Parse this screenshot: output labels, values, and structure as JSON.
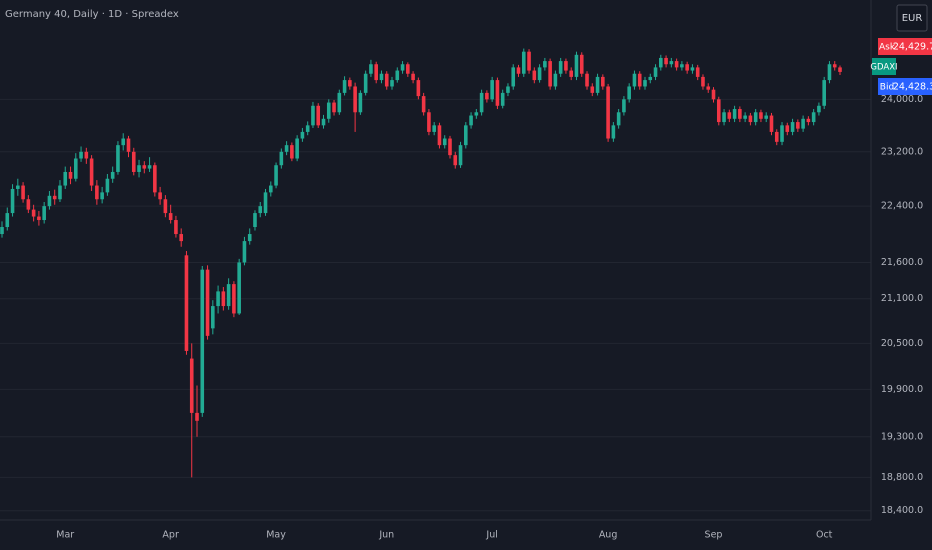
{
  "chart_data": {
    "type": "candlestick",
    "title": "Germany 40, Daily · 1D · Spreadex",
    "categories": [
      null,
      null,
      null,
      null,
      null,
      null,
      null,
      null,
      null,
      null,
      null,
      null,
      "Mar",
      null,
      null,
      null,
      null,
      null,
      null,
      null,
      null,
      null,
      null,
      null,
      null,
      null,
      null,
      null,
      null,
      null,
      null,
      null,
      "Apr",
      null,
      null,
      null,
      null,
      null,
      null,
      null,
      null,
      null,
      null,
      null,
      null,
      null,
      null,
      null,
      null,
      null,
      null,
      null,
      "May",
      null,
      null,
      null,
      null,
      null,
      null,
      null,
      null,
      null,
      null,
      null,
      null,
      null,
      null,
      null,
      null,
      null,
      null,
      null,
      null,
      "Jun",
      null,
      null,
      null,
      null,
      null,
      null,
      null,
      null,
      null,
      null,
      null,
      null,
      null,
      null,
      null,
      null,
      null,
      null,
      null,
      "Jul",
      null,
      null,
      null,
      null,
      null,
      null,
      null,
      null,
      null,
      null,
      null,
      null,
      null,
      null,
      null,
      null,
      null,
      null,
      null,
      null,
      null,
      "Aug",
      null,
      null,
      null,
      null,
      null,
      null,
      null,
      null,
      null,
      null,
      null,
      null,
      null,
      null,
      null,
      null,
      null,
      null,
      null,
      "Sep",
      null,
      null,
      null,
      null,
      null,
      null,
      null,
      null,
      null,
      null,
      null,
      null,
      null,
      null,
      null,
      null,
      null,
      null,
      null,
      null,
      "Oct",
      null,
      null,
      null
    ],
    "candles": [
      {
        "o": 22000,
        "h": 22180,
        "l": 21950,
        "c": 22100
      },
      {
        "o": 22100,
        "h": 22380,
        "l": 22050,
        "c": 22300
      },
      {
        "o": 22300,
        "h": 22720,
        "l": 22250,
        "c": 22650
      },
      {
        "o": 22650,
        "h": 22800,
        "l": 22550,
        "c": 22700
      },
      {
        "o": 22700,
        "h": 22750,
        "l": 22450,
        "c": 22500
      },
      {
        "o": 22500,
        "h": 22560,
        "l": 22300,
        "c": 22350
      },
      {
        "o": 22350,
        "h": 22420,
        "l": 22180,
        "c": 22250
      },
      {
        "o": 22250,
        "h": 22330,
        "l": 22120,
        "c": 22200
      },
      {
        "o": 22200,
        "h": 22460,
        "l": 22150,
        "c": 22400
      },
      {
        "o": 22400,
        "h": 22620,
        "l": 22350,
        "c": 22550
      },
      {
        "o": 22550,
        "h": 22640,
        "l": 22420,
        "c": 22500
      },
      {
        "o": 22500,
        "h": 22780,
        "l": 22460,
        "c": 22700
      },
      {
        "o": 22700,
        "h": 22980,
        "l": 22650,
        "c": 22900
      },
      {
        "o": 22900,
        "h": 22980,
        "l": 22720,
        "c": 22800
      },
      {
        "o": 22800,
        "h": 23180,
        "l": 22760,
        "c": 23100
      },
      {
        "o": 23100,
        "h": 23280,
        "l": 23050,
        "c": 23200
      },
      {
        "o": 23200,
        "h": 23260,
        "l": 23020,
        "c": 23100
      },
      {
        "o": 23100,
        "h": 23150,
        "l": 22620,
        "c": 22700
      },
      {
        "o": 22700,
        "h": 22780,
        "l": 22420,
        "c": 22500
      },
      {
        "o": 22500,
        "h": 22680,
        "l": 22440,
        "c": 22600
      },
      {
        "o": 22600,
        "h": 22870,
        "l": 22550,
        "c": 22800
      },
      {
        "o": 22800,
        "h": 22980,
        "l": 22740,
        "c": 22900
      },
      {
        "o": 22900,
        "h": 23360,
        "l": 22860,
        "c": 23300
      },
      {
        "o": 23300,
        "h": 23480,
        "l": 23220,
        "c": 23400
      },
      {
        "o": 23400,
        "h": 23440,
        "l": 23120,
        "c": 23200
      },
      {
        "o": 23200,
        "h": 23260,
        "l": 22850,
        "c": 22900
      },
      {
        "o": 22900,
        "h": 23080,
        "l": 22820,
        "c": 23000
      },
      {
        "o": 23000,
        "h": 23060,
        "l": 22880,
        "c": 22950
      },
      {
        "o": 22950,
        "h": 23120,
        "l": 22900,
        "c": 23000
      },
      {
        "o": 23000,
        "h": 23040,
        "l": 22540,
        "c": 22600
      },
      {
        "o": 22600,
        "h": 22680,
        "l": 22420,
        "c": 22500
      },
      {
        "o": 22500,
        "h": 22560,
        "l": 22240,
        "c": 22300
      },
      {
        "o": 22300,
        "h": 22420,
        "l": 22150,
        "c": 22200
      },
      {
        "o": 22200,
        "h": 22260,
        "l": 21950,
        "c": 22000
      },
      {
        "o": 22000,
        "h": 22080,
        "l": 21820,
        "c": 21900
      },
      {
        "o": 21700,
        "h": 21760,
        "l": 20350,
        "c": 20400
      },
      {
        "o": 20300,
        "h": 20500,
        "l": 18800,
        "c": 19600
      },
      {
        "o": 19600,
        "h": 19950,
        "l": 19300,
        "c": 19500
      },
      {
        "o": 19600,
        "h": 21550,
        "l": 19550,
        "c": 21500
      },
      {
        "o": 21500,
        "h": 21560,
        "l": 20550,
        "c": 20600
      },
      {
        "o": 20700,
        "h": 21080,
        "l": 20620,
        "c": 21000
      },
      {
        "o": 21000,
        "h": 21280,
        "l": 20900,
        "c": 21200
      },
      {
        "o": 21200,
        "h": 21260,
        "l": 20940,
        "c": 21000
      },
      {
        "o": 21000,
        "h": 21380,
        "l": 20950,
        "c": 21300
      },
      {
        "o": 21300,
        "h": 21340,
        "l": 20850,
        "c": 20900
      },
      {
        "o": 20900,
        "h": 21650,
        "l": 20880,
        "c": 21600
      },
      {
        "o": 21600,
        "h": 21960,
        "l": 21560,
        "c": 21900
      },
      {
        "o": 21900,
        "h": 22080,
        "l": 21850,
        "c": 22000
      },
      {
        "o": 22100,
        "h": 22340,
        "l": 22050,
        "c": 22300
      },
      {
        "o": 22300,
        "h": 22460,
        "l": 22240,
        "c": 22400
      },
      {
        "o": 22300,
        "h": 22650,
        "l": 22260,
        "c": 22600
      },
      {
        "o": 22600,
        "h": 22760,
        "l": 22540,
        "c": 22700
      },
      {
        "o": 22700,
        "h": 23040,
        "l": 22660,
        "c": 23000
      },
      {
        "o": 23000,
        "h": 23250,
        "l": 22950,
        "c": 23200
      },
      {
        "o": 23200,
        "h": 23360,
        "l": 23150,
        "c": 23300
      },
      {
        "o": 23300,
        "h": 23340,
        "l": 23060,
        "c": 23100
      },
      {
        "o": 23100,
        "h": 23450,
        "l": 23060,
        "c": 23400
      },
      {
        "o": 23400,
        "h": 23560,
        "l": 23350,
        "c": 23500
      },
      {
        "o": 23500,
        "h": 23660,
        "l": 23450,
        "c": 23600
      },
      {
        "o": 23600,
        "h": 23960,
        "l": 23560,
        "c": 23900
      },
      {
        "o": 23900,
        "h": 23940,
        "l": 23560,
        "c": 23600
      },
      {
        "o": 23600,
        "h": 23760,
        "l": 23550,
        "c": 23700
      },
      {
        "o": 23700,
        "h": 24000,
        "l": 23640,
        "c": 23950
      },
      {
        "o": 23950,
        "h": 23990,
        "l": 23750,
        "c": 23800
      },
      {
        "o": 23800,
        "h": 24150,
        "l": 23760,
        "c": 24100
      },
      {
        "o": 24100,
        "h": 24360,
        "l": 24060,
        "c": 24300
      },
      {
        "o": 24300,
        "h": 24340,
        "l": 24150,
        "c": 24200
      },
      {
        "o": 24200,
        "h": 24260,
        "l": 23500,
        "c": 23800
      },
      {
        "o": 23800,
        "h": 24140,
        "l": 23760,
        "c": 24100
      },
      {
        "o": 24100,
        "h": 24450,
        "l": 24060,
        "c": 24400
      },
      {
        "o": 24400,
        "h": 24620,
        "l": 24350,
        "c": 24550
      },
      {
        "o": 24550,
        "h": 24590,
        "l": 24250,
        "c": 24300
      },
      {
        "o": 24300,
        "h": 24450,
        "l": 24250,
        "c": 24400
      },
      {
        "o": 24400,
        "h": 24440,
        "l": 24150,
        "c": 24200
      },
      {
        "o": 24200,
        "h": 24350,
        "l": 24150,
        "c": 24300
      },
      {
        "o": 24300,
        "h": 24500,
        "l": 24260,
        "c": 24450
      },
      {
        "o": 24450,
        "h": 24600,
        "l": 24400,
        "c": 24550
      },
      {
        "o": 24550,
        "h": 24580,
        "l": 24350,
        "c": 24400
      },
      {
        "o": 24400,
        "h": 24440,
        "l": 24250,
        "c": 24300
      },
      {
        "o": 24300,
        "h": 24340,
        "l": 24000,
        "c": 24050
      },
      {
        "o": 24050,
        "h": 24100,
        "l": 23750,
        "c": 23800
      },
      {
        "o": 23800,
        "h": 23850,
        "l": 23450,
        "c": 23500
      },
      {
        "o": 23500,
        "h": 23650,
        "l": 23450,
        "c": 23600
      },
      {
        "o": 23600,
        "h": 23640,
        "l": 23250,
        "c": 23300
      },
      {
        "o": 23300,
        "h": 23450,
        "l": 23250,
        "c": 23400
      },
      {
        "o": 23400,
        "h": 23440,
        "l": 23100,
        "c": 23150
      },
      {
        "o": 23150,
        "h": 23200,
        "l": 22950,
        "c": 23000
      },
      {
        "o": 23000,
        "h": 23350,
        "l": 22960,
        "c": 23300
      },
      {
        "o": 23300,
        "h": 23650,
        "l": 23250,
        "c": 23600
      },
      {
        "o": 23600,
        "h": 23800,
        "l": 23550,
        "c": 23750
      },
      {
        "o": 23750,
        "h": 23850,
        "l": 23700,
        "c": 23800
      },
      {
        "o": 23800,
        "h": 24150,
        "l": 23750,
        "c": 24100
      },
      {
        "o": 24100,
        "h": 24140,
        "l": 23950,
        "c": 24000
      },
      {
        "o": 24000,
        "h": 24350,
        "l": 23960,
        "c": 24300
      },
      {
        "o": 24300,
        "h": 24340,
        "l": 23850,
        "c": 23900
      },
      {
        "o": 23900,
        "h": 24150,
        "l": 23860,
        "c": 24100
      },
      {
        "o": 24100,
        "h": 24250,
        "l": 24050,
        "c": 24200
      },
      {
        "o": 24200,
        "h": 24550,
        "l": 24150,
        "c": 24500
      },
      {
        "o": 24500,
        "h": 24540,
        "l": 24350,
        "c": 24400
      },
      {
        "o": 24400,
        "h": 24800,
        "l": 24350,
        "c": 24750
      },
      {
        "o": 24750,
        "h": 24790,
        "l": 24400,
        "c": 24450
      },
      {
        "o": 24450,
        "h": 24500,
        "l": 24250,
        "c": 24300
      },
      {
        "o": 24300,
        "h": 24550,
        "l": 24260,
        "c": 24500
      },
      {
        "o": 24500,
        "h": 24650,
        "l": 24450,
        "c": 24600
      },
      {
        "o": 24600,
        "h": 24640,
        "l": 24150,
        "c": 24200
      },
      {
        "o": 24200,
        "h": 24450,
        "l": 24150,
        "c": 24400
      },
      {
        "o": 24400,
        "h": 24650,
        "l": 24350,
        "c": 24600
      },
      {
        "o": 24600,
        "h": 24640,
        "l": 24400,
        "c": 24450
      },
      {
        "o": 24450,
        "h": 24500,
        "l": 24300,
        "c": 24350
      },
      {
        "o": 24350,
        "h": 24750,
        "l": 24300,
        "c": 24700
      },
      {
        "o": 24700,
        "h": 24740,
        "l": 24350,
        "c": 24400
      },
      {
        "o": 24400,
        "h": 24440,
        "l": 24150,
        "c": 24200
      },
      {
        "o": 24200,
        "h": 24250,
        "l": 24050,
        "c": 24100
      },
      {
        "o": 24100,
        "h": 24400,
        "l": 24060,
        "c": 24350
      },
      {
        "o": 24350,
        "h": 24390,
        "l": 24150,
        "c": 24200
      },
      {
        "o": 24200,
        "h": 24240,
        "l": 23350,
        "c": 23400
      },
      {
        "o": 23400,
        "h": 23650,
        "l": 23350,
        "c": 23600
      },
      {
        "o": 23600,
        "h": 23850,
        "l": 23550,
        "c": 23800
      },
      {
        "o": 23800,
        "h": 24050,
        "l": 23750,
        "c": 24000
      },
      {
        "o": 24000,
        "h": 24250,
        "l": 23950,
        "c": 24200
      },
      {
        "o": 24200,
        "h": 24450,
        "l": 24150,
        "c": 24400
      },
      {
        "o": 24400,
        "h": 24440,
        "l": 24150,
        "c": 24200
      },
      {
        "o": 24200,
        "h": 24350,
        "l": 24150,
        "c": 24300
      },
      {
        "o": 24300,
        "h": 24400,
        "l": 24250,
        "c": 24350
      },
      {
        "o": 24350,
        "h": 24550,
        "l": 24300,
        "c": 24500
      },
      {
        "o": 24500,
        "h": 24700,
        "l": 24450,
        "c": 24650
      },
      {
        "o": 24650,
        "h": 24690,
        "l": 24500,
        "c": 24550
      },
      {
        "o": 24550,
        "h": 24650,
        "l": 24500,
        "c": 24600
      },
      {
        "o": 24600,
        "h": 24640,
        "l": 24450,
        "c": 24500
      },
      {
        "o": 24500,
        "h": 24600,
        "l": 24450,
        "c": 24550
      },
      {
        "o": 24550,
        "h": 24590,
        "l": 24400,
        "c": 24450
      },
      {
        "o": 24450,
        "h": 24550,
        "l": 24400,
        "c": 24500
      },
      {
        "o": 24500,
        "h": 24540,
        "l": 24300,
        "c": 24350
      },
      {
        "o": 24350,
        "h": 24390,
        "l": 24150,
        "c": 24200
      },
      {
        "o": 24200,
        "h": 24250,
        "l": 24100,
        "c": 24150
      },
      {
        "o": 24150,
        "h": 24190,
        "l": 23950,
        "c": 24000
      },
      {
        "o": 24000,
        "h": 24040,
        "l": 23600,
        "c": 23650
      },
      {
        "o": 23650,
        "h": 23850,
        "l": 23600,
        "c": 23800
      },
      {
        "o": 23800,
        "h": 23840,
        "l": 23650,
        "c": 23700
      },
      {
        "o": 23700,
        "h": 23900,
        "l": 23650,
        "c": 23850
      },
      {
        "o": 23850,
        "h": 23890,
        "l": 23650,
        "c": 23700
      },
      {
        "o": 23700,
        "h": 23800,
        "l": 23650,
        "c": 23750
      },
      {
        "o": 23750,
        "h": 23790,
        "l": 23600,
        "c": 23650
      },
      {
        "o": 23650,
        "h": 23850,
        "l": 23600,
        "c": 23800
      },
      {
        "o": 23800,
        "h": 23840,
        "l": 23650,
        "c": 23700
      },
      {
        "o": 23700,
        "h": 23800,
        "l": 23650,
        "c": 23750
      },
      {
        "o": 23750,
        "h": 23790,
        "l": 23450,
        "c": 23500
      },
      {
        "o": 23500,
        "h": 23540,
        "l": 23300,
        "c": 23350
      },
      {
        "o": 23350,
        "h": 23650,
        "l": 23300,
        "c": 23600
      },
      {
        "o": 23600,
        "h": 23640,
        "l": 23450,
        "c": 23500
      },
      {
        "o": 23500,
        "h": 23700,
        "l": 23450,
        "c": 23650
      },
      {
        "o": 23650,
        "h": 23690,
        "l": 23500,
        "c": 23550
      },
      {
        "o": 23550,
        "h": 23750,
        "l": 23500,
        "c": 23700
      },
      {
        "o": 23700,
        "h": 23740,
        "l": 23600,
        "c": 23650
      },
      {
        "o": 23650,
        "h": 23850,
        "l": 23600,
        "c": 23800
      },
      {
        "o": 23800,
        "h": 23950,
        "l": 23750,
        "c": 23900
      },
      {
        "o": 23900,
        "h": 24350,
        "l": 23850,
        "c": 24300
      },
      {
        "o": 24300,
        "h": 24600,
        "l": 24250,
        "c": 24550
      },
      {
        "o": 24550,
        "h": 24600,
        "l": 24450,
        "c": 24500
      },
      {
        "o": 24500,
        "h": 24530,
        "l": 24380,
        "c": 24428.3
      }
    ],
    "up_color": "#22ab94",
    "down_color": "#f23645",
    "log_scale": true,
    "grid": true,
    "ylim": [
      18290,
      25590
    ],
    "yticks": [
      {
        "value": 18400,
        "label": "18,400.0"
      },
      {
        "value": 18800,
        "label": "18,800.0"
      },
      {
        "value": 19300,
        "label": "19,300.0"
      },
      {
        "value": 19900,
        "label": "19,900.0"
      },
      {
        "value": 20500,
        "label": "20,500.0"
      },
      {
        "value": 21100,
        "label": "21,100.0"
      },
      {
        "value": 21600,
        "label": "21,600.0"
      },
      {
        "value": 22400,
        "label": "22,400.0"
      },
      {
        "value": 23200,
        "label": "23,200.0"
      },
      {
        "value": 24000,
        "label": "24,000.0"
      }
    ]
  },
  "price_scale": {
    "currency": "EUR",
    "ask_label": "Ask",
    "ask": "24,429.7",
    "symbol": "GDAXI",
    "bid_label": "Bid",
    "bid": "24,428.3"
  }
}
